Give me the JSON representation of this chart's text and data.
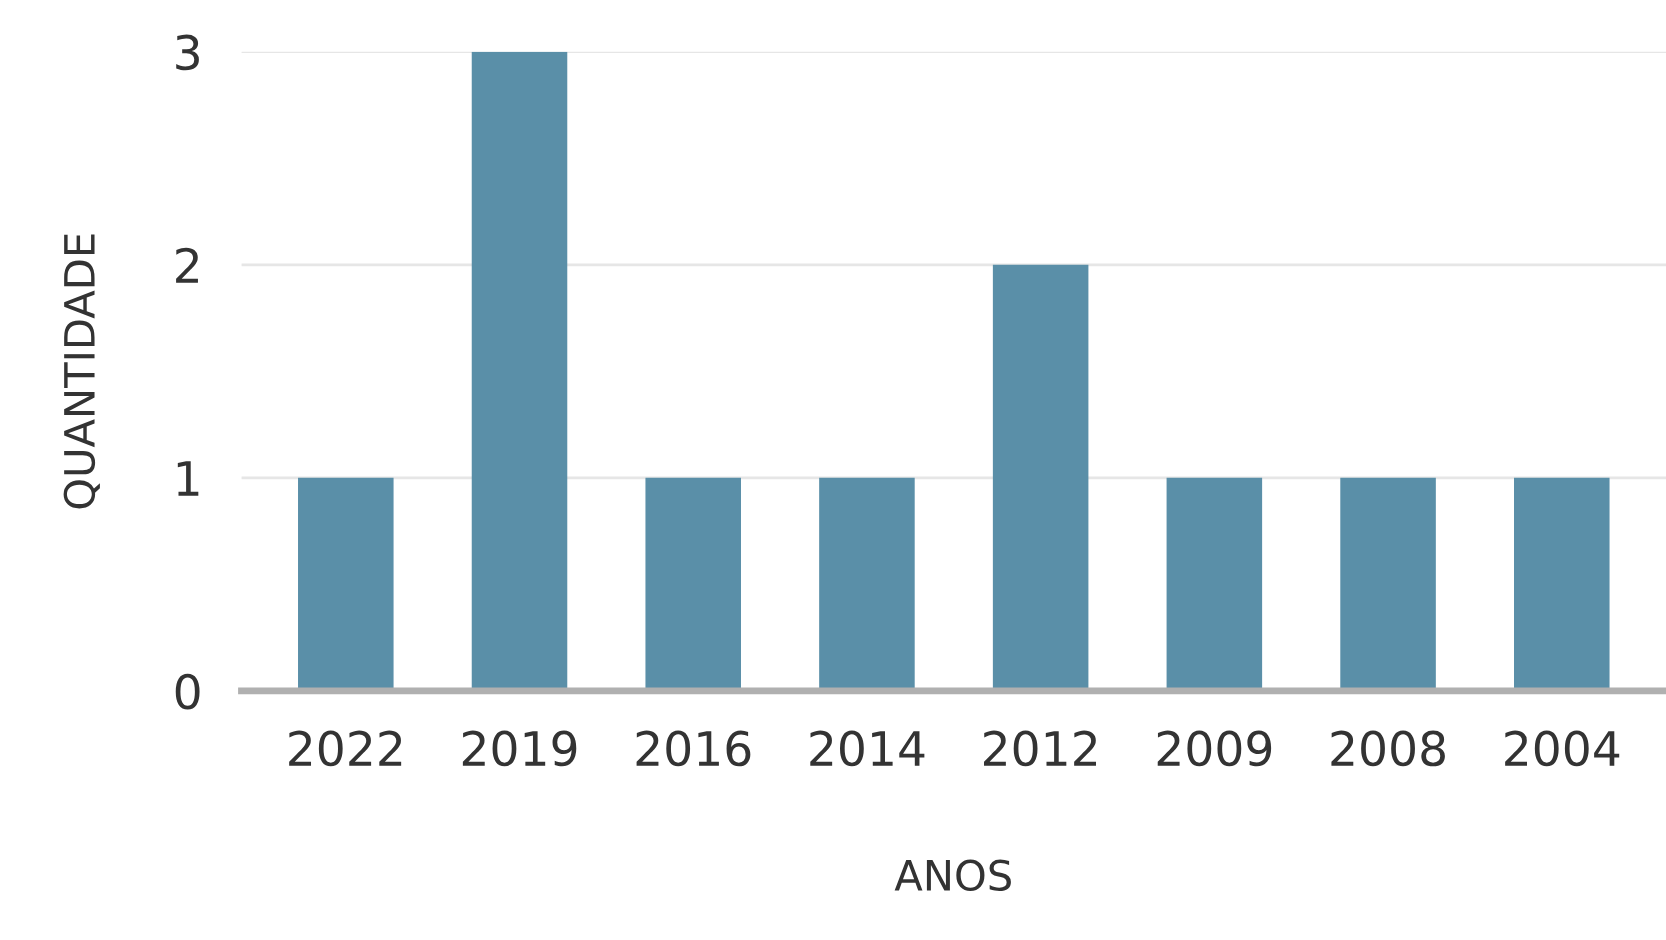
{
  "chart_data": {
    "type": "bar",
    "xlabel": "ANOS",
    "ylabel": "QUANTIDADE",
    "categories": [
      "2022",
      "2019",
      "2016",
      "2014",
      "2012",
      "2009",
      "2008",
      "2004"
    ],
    "values": [
      1,
      3,
      1,
      1,
      2,
      1,
      1,
      1
    ],
    "color": "#5a8fa8",
    "ylim": [
      0,
      3
    ],
    "yticks": [
      0,
      1,
      2,
      3
    ],
    "grid": "y"
  }
}
